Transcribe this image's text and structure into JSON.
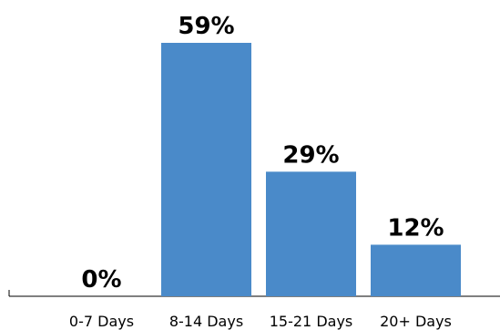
{
  "chart_data": {
    "type": "bar",
    "title": "",
    "xlabel": "",
    "ylabel": "",
    "categories": [
      "0-7 Days",
      "8-14 Days",
      "15-21 Days",
      "20+ Days"
    ],
    "values": [
      0,
      59,
      29,
      12
    ],
    "data_labels": [
      "0%",
      "59%",
      "29%",
      "12%"
    ],
    "ylim": [
      0,
      59
    ],
    "grid": false,
    "legend": "none",
    "bar_color": "#4a8ac9"
  }
}
